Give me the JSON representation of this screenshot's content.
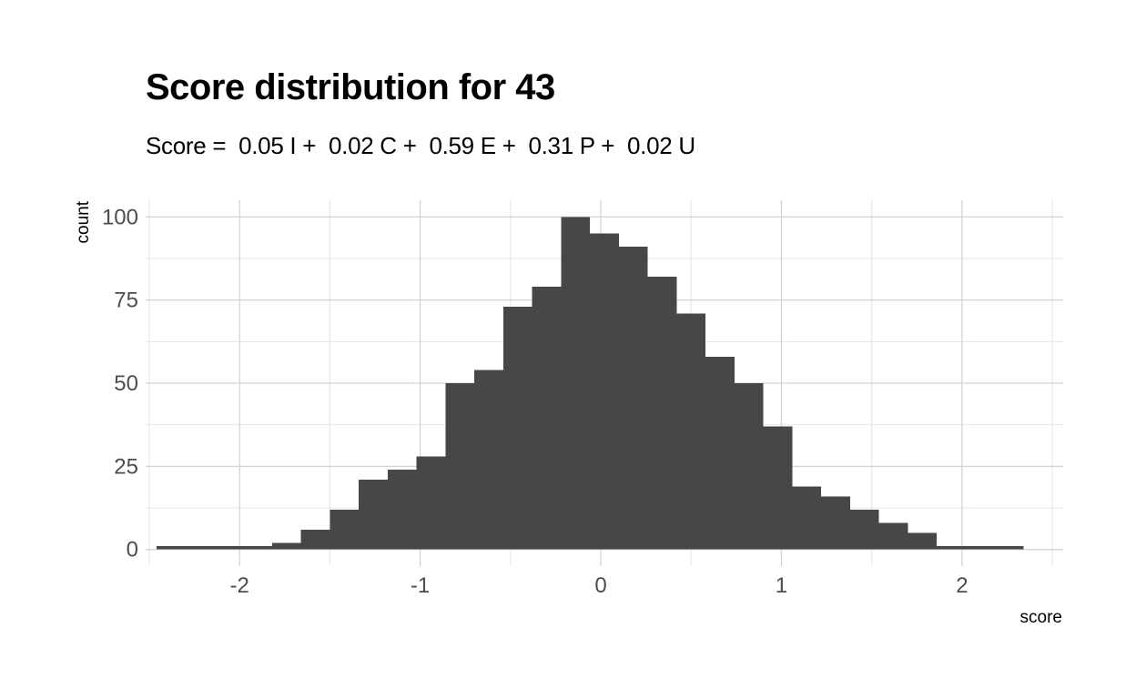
{
  "chart_data": {
    "type": "bar",
    "title": "Score distribution for 43",
    "subtitle": "Score =  0.05 I +  0.02 C +  0.59 E +  0.31 P +  0.02 U",
    "xlabel": "score",
    "ylabel": "count",
    "xlim": [
      -2.52,
      2.56
    ],
    "ylim": [
      -5,
      105
    ],
    "x_ticks": [
      -2,
      -1,
      0,
      1,
      2
    ],
    "y_ticks": [
      0,
      25,
      50,
      75,
      100
    ],
    "grid": true,
    "colors": {
      "bar": "#474747",
      "grid_major": "#d2d2d2",
      "grid_minor": "#e6e6e6"
    },
    "bin_width": 0.16,
    "bins": [
      {
        "x_start": -2.46,
        "x_end": -2.3,
        "count": 1
      },
      {
        "x_start": -2.3,
        "x_end": -2.14,
        "count": 1
      },
      {
        "x_start": -2.14,
        "x_end": -1.98,
        "count": 1
      },
      {
        "x_start": -1.98,
        "x_end": -1.82,
        "count": 1
      },
      {
        "x_start": -1.82,
        "x_end": -1.66,
        "count": 2
      },
      {
        "x_start": -1.66,
        "x_end": -1.5,
        "count": 6
      },
      {
        "x_start": -1.5,
        "x_end": -1.34,
        "count": 12
      },
      {
        "x_start": -1.34,
        "x_end": -1.18,
        "count": 21
      },
      {
        "x_start": -1.18,
        "x_end": -1.02,
        "count": 24
      },
      {
        "x_start": -1.02,
        "x_end": -0.86,
        "count": 28
      },
      {
        "x_start": -0.86,
        "x_end": -0.7,
        "count": 50
      },
      {
        "x_start": -0.7,
        "x_end": -0.54,
        "count": 54
      },
      {
        "x_start": -0.54,
        "x_end": -0.38,
        "count": 73
      },
      {
        "x_start": -0.38,
        "x_end": -0.22,
        "count": 79
      },
      {
        "x_start": -0.22,
        "x_end": -0.06,
        "count": 100
      },
      {
        "x_start": -0.06,
        "x_end": 0.1,
        "count": 95
      },
      {
        "x_start": 0.1,
        "x_end": 0.26,
        "count": 91
      },
      {
        "x_start": 0.26,
        "x_end": 0.42,
        "count": 82
      },
      {
        "x_start": 0.42,
        "x_end": 0.58,
        "count": 71
      },
      {
        "x_start": 0.58,
        "x_end": 0.74,
        "count": 58
      },
      {
        "x_start": 0.74,
        "x_end": 0.9,
        "count": 50
      },
      {
        "x_start": 0.9,
        "x_end": 1.06,
        "count": 37
      },
      {
        "x_start": 1.06,
        "x_end": 1.22,
        "count": 19
      },
      {
        "x_start": 1.22,
        "x_end": 1.38,
        "count": 16
      },
      {
        "x_start": 1.38,
        "x_end": 1.54,
        "count": 12
      },
      {
        "x_start": 1.54,
        "x_end": 1.7,
        "count": 8
      },
      {
        "x_start": 1.7,
        "x_end": 1.86,
        "count": 5
      },
      {
        "x_start": 1.86,
        "x_end": 2.02,
        "count": 1
      },
      {
        "x_start": 2.02,
        "x_end": 2.18,
        "count": 1
      },
      {
        "x_start": 2.18,
        "x_end": 2.34,
        "count": 1
      }
    ]
  }
}
